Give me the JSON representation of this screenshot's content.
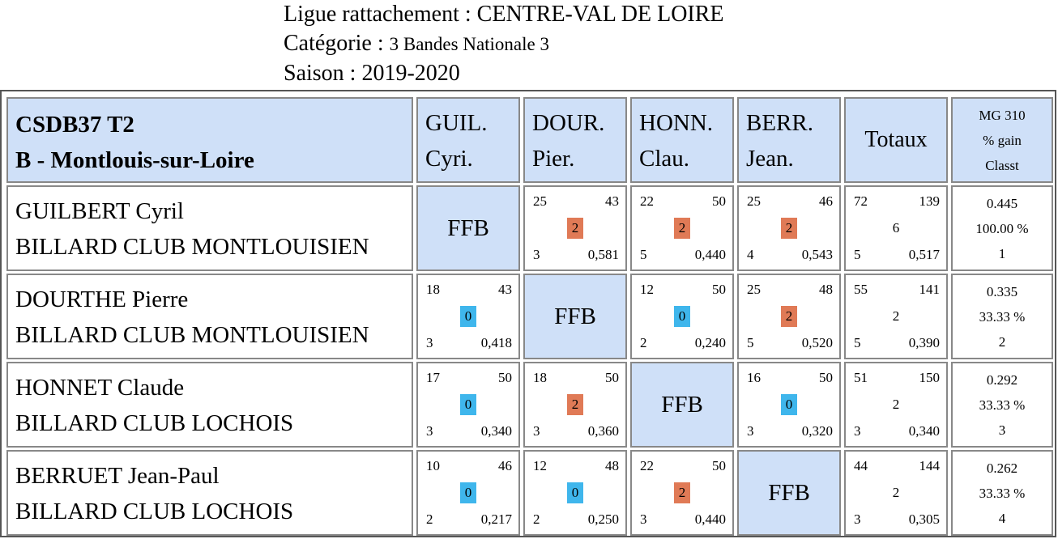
{
  "header": {
    "ligue_label": "Ligue rattachement :",
    "ligue_value": "CENTRE-VAL DE LOIRE",
    "categorie_label": "Catégorie :",
    "categorie_value": "3 Bandes Nationale 3",
    "saison_label": "Saison :",
    "saison_value": "2019-2020"
  },
  "table": {
    "team_code": "CSDB37 T2",
    "team_group": "B - Montlouis-sur-Loire",
    "columns": [
      {
        "line1": "GUIL.",
        "line2": "Cyri."
      },
      {
        "line1": "DOUR.",
        "line2": "Pier."
      },
      {
        "line1": "HONN.",
        "line2": "Clau."
      },
      {
        "line1": "BERR.",
        "line2": "Jean."
      }
    ],
    "totaux_label": "Totaux",
    "mg_label": "MG 310",
    "gain_label": "% gain",
    "classt_label": "Classt",
    "ffb_label": "FFB",
    "colors": {
      "header_bg": "#cfe0f8",
      "win": "#e07a56",
      "loss": "#3fb6ec"
    },
    "rows": [
      {
        "name": "GUILBERT Cyril",
        "club": "BILLARD CLUB MONTLOUISIEN",
        "matches": [
          null,
          {
            "points": "25",
            "reprises": "43",
            "result": "2",
            "outcome": "win",
            "serie": "3",
            "moyenne": "0,581"
          },
          {
            "points": "22",
            "reprises": "50",
            "result": "2",
            "outcome": "win",
            "serie": "5",
            "moyenne": "0,440"
          },
          {
            "points": "25",
            "reprises": "46",
            "result": "2",
            "outcome": "win",
            "serie": "4",
            "moyenne": "0,543"
          }
        ],
        "totals": {
          "points": "72",
          "reprises": "139",
          "result": "6",
          "serie": "5",
          "moyenne": "0,517"
        },
        "mg": "0.445",
        "gain": "100.00 %",
        "classt": "1"
      },
      {
        "name": "DOURTHE Pierre",
        "club": "BILLARD CLUB MONTLOUISIEN",
        "matches": [
          {
            "points": "18",
            "reprises": "43",
            "result": "0",
            "outcome": "loss",
            "serie": "3",
            "moyenne": "0,418"
          },
          null,
          {
            "points": "12",
            "reprises": "50",
            "result": "0",
            "outcome": "loss",
            "serie": "2",
            "moyenne": "0,240"
          },
          {
            "points": "25",
            "reprises": "48",
            "result": "2",
            "outcome": "win",
            "serie": "5",
            "moyenne": "0,520"
          }
        ],
        "totals": {
          "points": "55",
          "reprises": "141",
          "result": "2",
          "serie": "5",
          "moyenne": "0,390"
        },
        "mg": "0.335",
        "gain": "33.33 %",
        "classt": "2"
      },
      {
        "name": "HONNET Claude",
        "club": "BILLARD CLUB LOCHOIS",
        "matches": [
          {
            "points": "17",
            "reprises": "50",
            "result": "0",
            "outcome": "loss",
            "serie": "3",
            "moyenne": "0,340"
          },
          {
            "points": "18",
            "reprises": "50",
            "result": "2",
            "outcome": "win",
            "serie": "3",
            "moyenne": "0,360"
          },
          null,
          {
            "points": "16",
            "reprises": "50",
            "result": "0",
            "outcome": "loss",
            "serie": "3",
            "moyenne": "0,320"
          }
        ],
        "totals": {
          "points": "51",
          "reprises": "150",
          "result": "2",
          "serie": "3",
          "moyenne": "0,340"
        },
        "mg": "0.292",
        "gain": "33.33 %",
        "classt": "3"
      },
      {
        "name": "BERRUET Jean-Paul",
        "club": "BILLARD CLUB LOCHOIS",
        "matches": [
          {
            "points": "10",
            "reprises": "46",
            "result": "0",
            "outcome": "loss",
            "serie": "2",
            "moyenne": "0,217"
          },
          {
            "points": "12",
            "reprises": "48",
            "result": "0",
            "outcome": "loss",
            "serie": "2",
            "moyenne": "0,250"
          },
          {
            "points": "22",
            "reprises": "50",
            "result": "2",
            "outcome": "win",
            "serie": "3",
            "moyenne": "0,440"
          },
          null
        ],
        "totals": {
          "points": "44",
          "reprises": "144",
          "result": "2",
          "serie": "3",
          "moyenne": "0,305"
        },
        "mg": "0.262",
        "gain": "33.33 %",
        "classt": "4"
      }
    ]
  }
}
